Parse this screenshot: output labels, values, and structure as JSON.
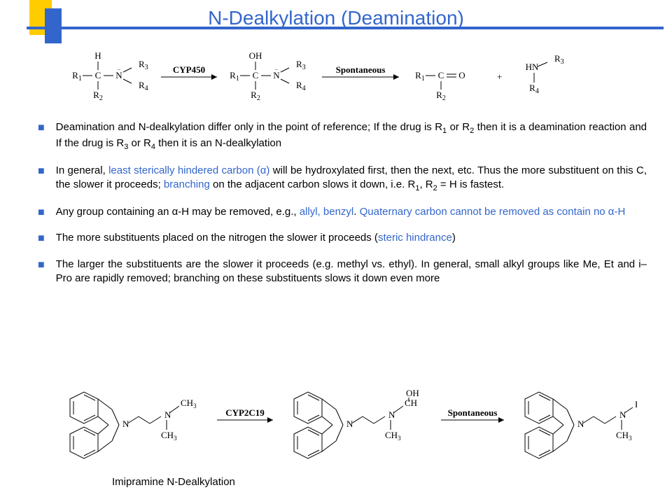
{
  "title": "N-Dealkylation (Deamination)",
  "colors": {
    "accent_blue": "#3366cc",
    "accent_yellow": "#ffcc00",
    "text": "#000000",
    "highlight": "#3366cc"
  },
  "scheme1": {
    "reactant": {
      "top": "H",
      "left": "R1",
      "right_top": "R3",
      "bottom": "R2",
      "right_bottom": "R4",
      "center1": "C",
      "center2": "N"
    },
    "arrow1_label": "CYP450",
    "intermediate": {
      "top": "OH",
      "left": "R1",
      "right_top": "R3",
      "bottom": "R2",
      "right_bottom": "R4",
      "center1": "C",
      "center2": "N"
    },
    "arrow2_label": "Spontaneous",
    "product1": {
      "left": "R1",
      "bottom": "R2",
      "center": "C",
      "right": "O"
    },
    "plus": "+",
    "product2": {
      "top": "HN",
      "right_top": "R3",
      "right_bottom": "R4"
    }
  },
  "bullets": [
    {
      "segments": [
        {
          "t": "Deamination and N-dealkylation differ only in the point of reference; If the drug is R"
        },
        {
          "t": "1",
          "sub": true
        },
        {
          "t": " or R"
        },
        {
          "t": "2",
          "sub": true
        },
        {
          "t": " then it is a deamination reaction and If the drug is R"
        },
        {
          "t": "3",
          "sub": true
        },
        {
          "t": " or R"
        },
        {
          "t": "4",
          "sub": true
        },
        {
          "t": " then it is an N-dealkylation"
        }
      ]
    },
    {
      "segments": [
        {
          "t": "In general, "
        },
        {
          "t": "least sterically hindered carbon (α)",
          "hl": true
        },
        {
          "t": " will be hydroxylated first, then the next, etc. Thus the more substituent on this C, the slower it proceeds; "
        },
        {
          "t": "branching",
          "hl": true
        },
        {
          "t": " on the adjacent carbon slows it down, i.e. R"
        },
        {
          "t": "1",
          "sub": true
        },
        {
          "t": ", R"
        },
        {
          "t": "2",
          "sub": true
        },
        {
          "t": " = H is fastest."
        }
      ]
    },
    {
      "segments": [
        {
          "t": "Any group containing an α-H may be removed, e.g., "
        },
        {
          "t": "allyl, benzyl",
          "hl": true
        },
        {
          "t": ". "
        },
        {
          "t": "Quaternary carbon cannot be removed as contain no α-H",
          "hl": true
        }
      ]
    },
    {
      "segments": [
        {
          "t": "The more substituents placed on the nitrogen the slower it proceeds ("
        },
        {
          "t": "steric hindrance",
          "hl": true
        },
        {
          "t": ")"
        }
      ]
    },
    {
      "segments": [
        {
          "t": "The larger the substituents are the slower it proceeds (e.g. methyl vs. ethyl). In general, small alkyl groups like Me, Et and i–Pro are rapidly removed; branching on these substituents slows it down even more"
        }
      ]
    }
  ],
  "scheme2": {
    "arrow1_label": "CYP2C19",
    "arrow2_label": "Spontaneous",
    "labels": {
      "CH3": "CH3",
      "OH": "OH",
      "CH": "CH",
      "H": "H",
      "N": "N"
    }
  },
  "caption": "Imipramine N-Dealkylation"
}
